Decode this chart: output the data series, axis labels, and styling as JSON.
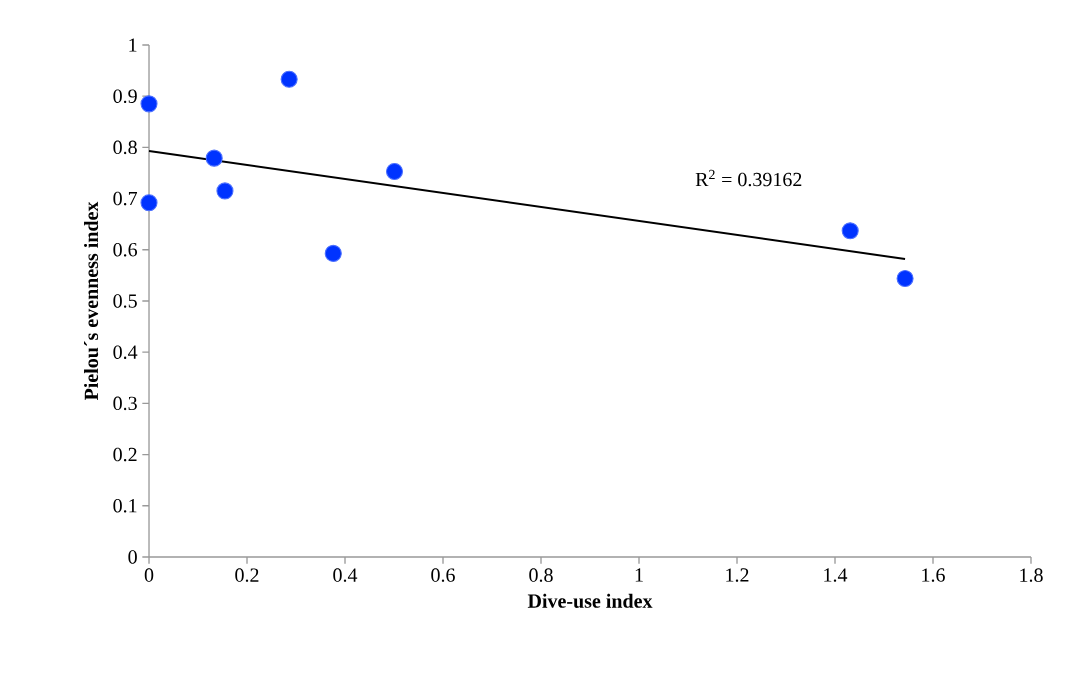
{
  "chart_data": {
    "type": "scatter",
    "xlabel": "Dive-use index",
    "ylabel": "Pielou´s evenness index",
    "xlim": [
      0,
      1.8
    ],
    "xticks": [
      0,
      0.2,
      0.4,
      0.6,
      0.8,
      1,
      1.2,
      1.4,
      1.6,
      1.8
    ],
    "ylim": [
      0,
      1
    ],
    "yticks": [
      0,
      0.1,
      0.2,
      0.3,
      0.4,
      0.5,
      0.6,
      0.7,
      0.8,
      0.9,
      1
    ],
    "grid": false,
    "legend": false,
    "annotations": [
      "R$^{2}$ = 0.39162"
    ],
    "series": [
      {
        "color": "#0033ff",
        "marker": "circle",
        "x": [
          0,
          0,
          0.133,
          0.155,
          0.286,
          0.376,
          0.501,
          1.431,
          1.543
        ],
        "values": [
          0.885,
          0.692,
          0.779,
          0.715,
          0.933,
          0.593,
          0.753,
          0.637,
          0.544
        ]
      },
      {
        "type": "line",
        "color": "#000000",
        "marker": "none",
        "x": [
          0,
          1.543
        ],
        "values": [
          0.793,
          0.582
        ]
      }
    ]
  }
}
